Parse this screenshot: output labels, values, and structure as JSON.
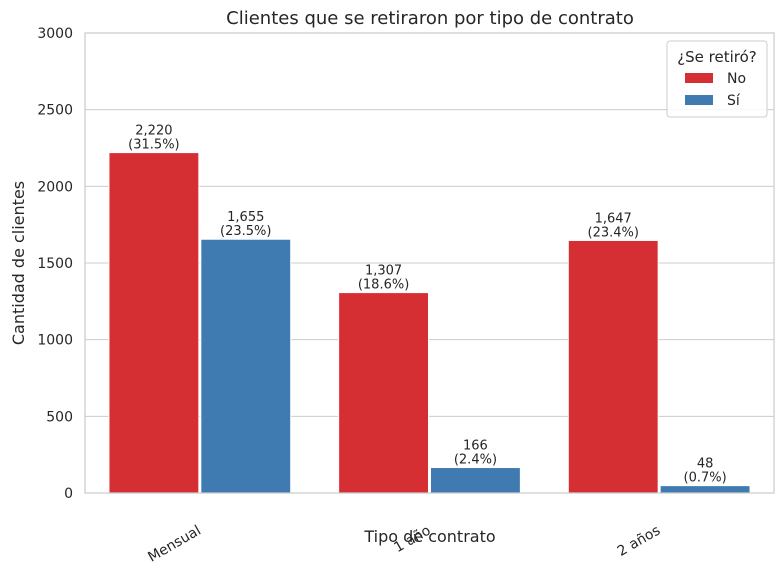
{
  "chart_data": {
    "type": "bar",
    "title": "Clientes que se retiraron por tipo de contrato",
    "xlabel": "Tipo de contrato",
    "ylabel": "Cantidad de clientes",
    "categories": [
      "Mensual",
      "1 año",
      "2 años"
    ],
    "series": [
      {
        "name": "No",
        "color": "#d62f33",
        "values": [
          2220,
          1307,
          1647
        ],
        "labels": [
          [
            "2,220",
            "(31.5%)"
          ],
          [
            "1,307",
            "(18.6%)"
          ],
          [
            "1,647",
            "(23.4%)"
          ]
        ]
      },
      {
        "name": "Sí",
        "color": "#3f7bb0",
        "values": [
          1655,
          166,
          48
        ],
        "labels": [
          [
            "1,655",
            "(23.5%)"
          ],
          [
            "166",
            "(2.4%)"
          ],
          [
            "48",
            "(0.7%)"
          ]
        ]
      }
    ],
    "ylim": [
      0,
      3000
    ],
    "yticks": [
      0,
      500,
      1000,
      1500,
      2000,
      2500,
      3000
    ],
    "legend": {
      "title": "¿Se retiró?",
      "placement": "top-right"
    },
    "grid": "horizontal",
    "xtick_rotation": 30
  }
}
